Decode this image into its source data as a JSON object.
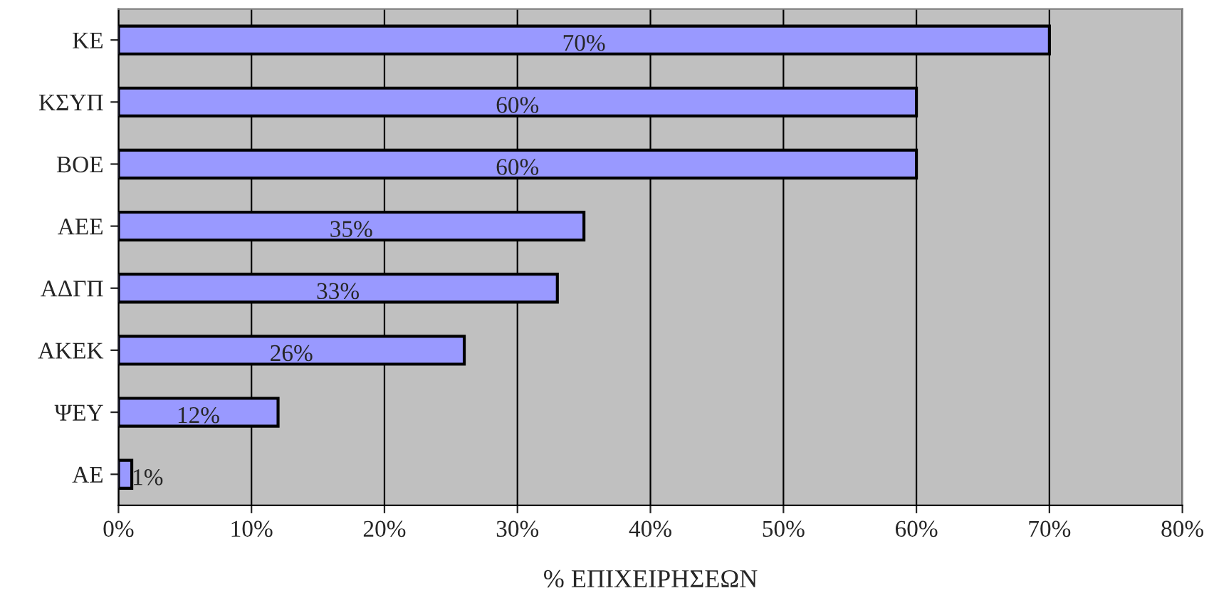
{
  "chart_data": {
    "type": "bar",
    "orientation": "horizontal",
    "xlabel": "% ΕΠΙΧΕΙΡΗΣΕΩΝ",
    "categories": [
      "ΚΕ",
      "ΚΣΥΠ",
      "ΒΟΕ",
      "ΑΕΕ",
      "ΑΔΓΠ",
      "ΑΚΕΚ",
      "ΨΕΥ",
      "ΑΕ"
    ],
    "values": [
      70,
      60,
      60,
      35,
      33,
      26,
      12,
      1
    ],
    "value_labels": [
      "70%",
      "60%",
      "60%",
      "35%",
      "33%",
      "26%",
      "12%",
      "1%"
    ],
    "color": "#9999ff",
    "xlim": [
      0,
      80
    ],
    "xticks": [
      {
        "value": 0,
        "label": "0%"
      },
      {
        "value": 10,
        "label": "10%"
      },
      {
        "value": 20,
        "label": "20%"
      },
      {
        "value": 30,
        "label": "30%"
      },
      {
        "value": 40,
        "label": "40%"
      },
      {
        "value": 50,
        "label": "50%"
      },
      {
        "value": 60,
        "label": "60%"
      },
      {
        "value": 70,
        "label": "70%"
      },
      {
        "value": 80,
        "label": "80%"
      }
    ],
    "grid": "x",
    "legend": false
  }
}
